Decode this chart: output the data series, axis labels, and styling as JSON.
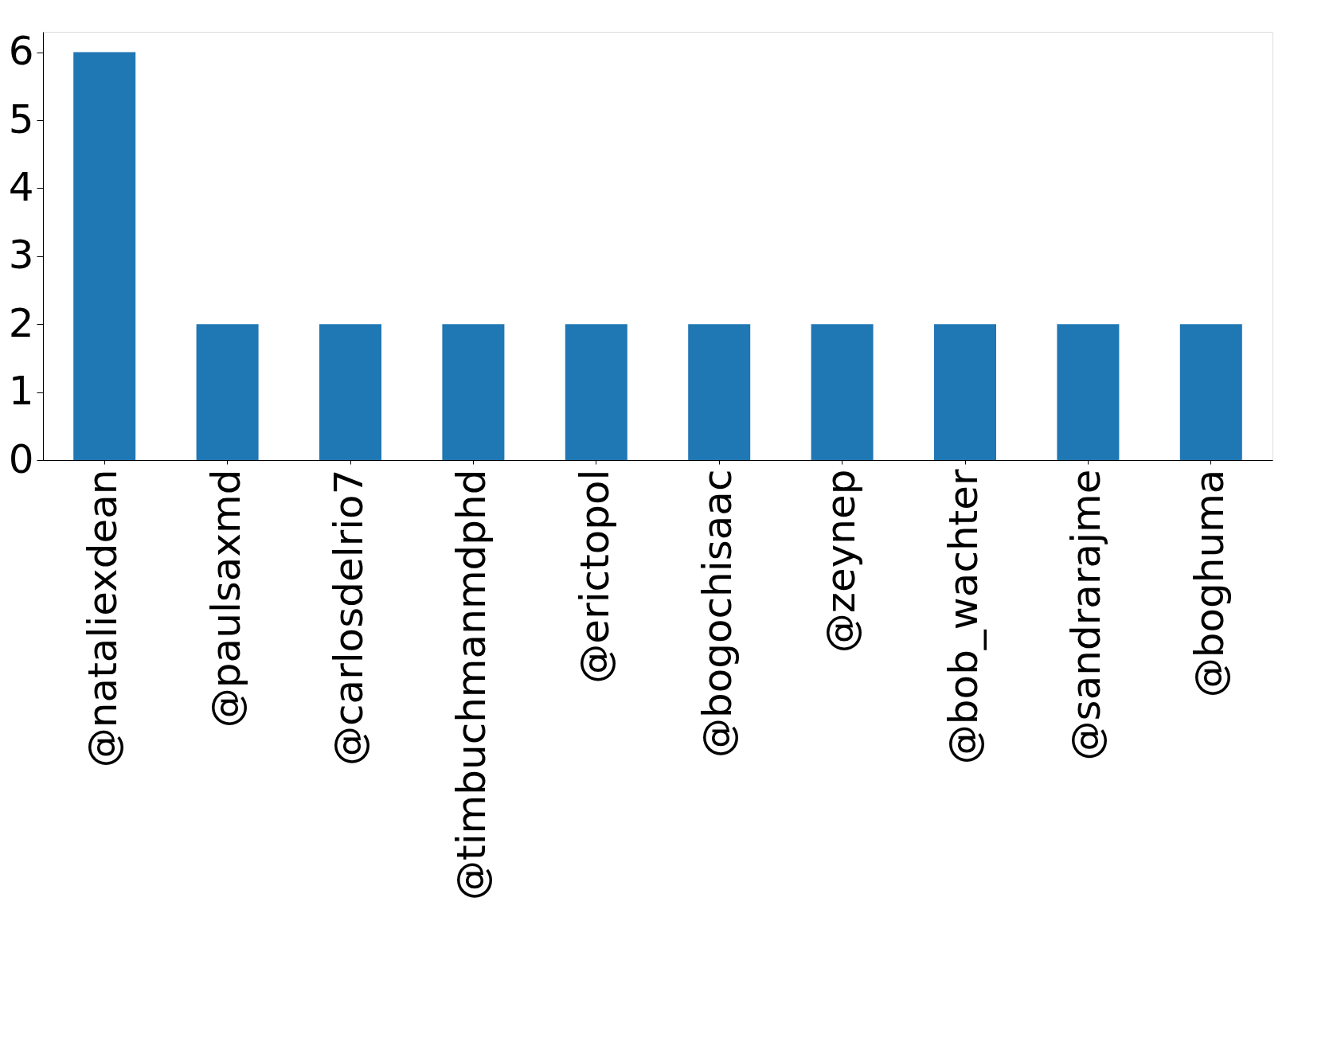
{
  "chart_data": {
    "type": "bar",
    "categories": [
      "@nataliexdean",
      "@paulsaxmd",
      "@carlosdelrio7",
      "@timbuchmanmdphd",
      "@erictopol",
      "@bogochisaac",
      "@zeynep",
      "@bob_wachter",
      "@sandrarajme",
      "@boghuma"
    ],
    "values": [
      6,
      2,
      2,
      2,
      2,
      2,
      2,
      2,
      2,
      2
    ],
    "color": "#1f77b4",
    "ylim": [
      0,
      6.3
    ],
    "yticks": [
      0,
      1,
      2,
      3,
      4,
      5,
      6
    ],
    "grid": false
  }
}
